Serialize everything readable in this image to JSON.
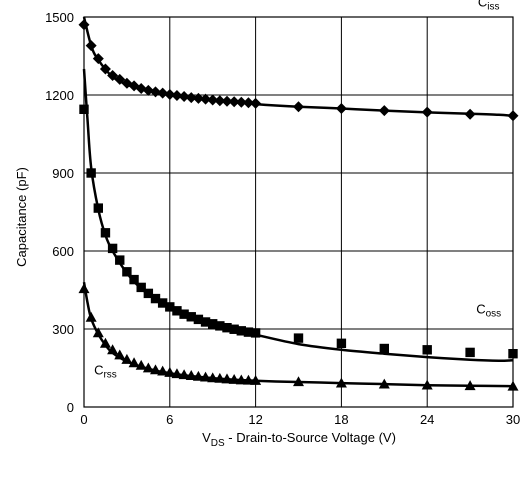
{
  "chart_data": {
    "type": "scatter",
    "title": "",
    "xlabel": {
      "main": "V",
      "sub": "DS",
      "rest": " - Drain-to-Source Voltage (V)"
    },
    "ylabel": "Capacitance (pF)",
    "xlim": [
      0,
      30
    ],
    "ylim": [
      0,
      1500
    ],
    "grid": true,
    "x_ticks": [
      0,
      6,
      12,
      18,
      24,
      30
    ],
    "y_ticks": [
      0,
      300,
      600,
      900,
      1200,
      1500
    ],
    "x_tick_labels": [
      "0",
      "6",
      "12",
      "18",
      "24",
      "30"
    ],
    "y_tick_labels": [
      "0",
      "300",
      "600",
      "900",
      "1200",
      "1500"
    ],
    "series": [
      {
        "name": {
          "main": "C",
          "sub": "iss"
        },
        "marker": "diamond",
        "label_at": [
          28.3,
          1540
        ],
        "x": [
          0,
          0.5,
          1,
          1.5,
          2,
          2.5,
          3,
          3.5,
          4,
          4.5,
          5,
          5.5,
          6,
          6.5,
          7,
          7.5,
          8,
          8.5,
          9,
          9.5,
          10,
          10.5,
          11,
          11.5,
          12,
          15,
          18,
          21,
          24,
          27,
          30
        ],
        "y": [
          1470,
          1390,
          1340,
          1300,
          1275,
          1260,
          1245,
          1235,
          1225,
          1218,
          1212,
          1207,
          1202,
          1198,
          1194,
          1190,
          1187,
          1184,
          1181,
          1178,
          1176,
          1174,
          1172,
          1170,
          1168,
          1155,
          1148,
          1140,
          1134,
          1126,
          1120
        ],
        "curve_x": [
          0,
          0.5,
          1,
          2,
          3,
          4,
          5,
          6,
          8,
          10,
          12,
          15,
          18,
          21,
          24,
          27,
          29,
          30
        ],
        "curve_y": [
          1500,
          1390,
          1335,
          1270,
          1240,
          1222,
          1210,
          1200,
          1186,
          1175,
          1165,
          1155,
          1148,
          1140,
          1133,
          1128,
          1124,
          1120
        ]
      },
      {
        "name": {
          "main": "C",
          "sub": "oss"
        },
        "marker": "square",
        "label_at": [
          28.3,
          360
        ],
        "x": [
          0,
          0.5,
          1,
          1.5,
          2,
          2.5,
          3,
          3.5,
          4,
          4.5,
          5,
          5.5,
          6,
          6.5,
          7,
          7.5,
          8,
          8.5,
          9,
          9.5,
          10,
          10.5,
          11,
          11.5,
          12,
          15,
          18,
          21,
          24,
          27,
          30
        ],
        "y": [
          1145,
          900,
          765,
          670,
          610,
          565,
          520,
          490,
          460,
          437,
          417,
          400,
          385,
          370,
          357,
          347,
          337,
          327,
          320,
          312,
          305,
          299,
          293,
          288,
          285,
          265,
          245,
          225,
          220,
          210,
          205
        ],
        "curve_x": [
          0,
          0.25,
          0.5,
          1,
          1.5,
          2,
          3,
          4,
          5,
          6,
          7,
          8,
          9,
          10,
          11,
          12,
          15,
          18,
          21,
          24,
          27,
          29,
          30
        ],
        "curve_y": [
          1300,
          1100,
          920,
          760,
          660,
          600,
          515,
          455,
          415,
          380,
          353,
          333,
          317,
          302,
          290,
          278,
          242,
          220,
          205,
          192,
          182,
          178,
          180
        ]
      },
      {
        "name": {
          "main": "C",
          "sub": "rss"
        },
        "marker": "triangle",
        "label_at": [
          1.5,
          125
        ],
        "x": [
          0,
          0.5,
          1,
          1.5,
          2,
          2.5,
          3,
          3.5,
          4,
          4.5,
          5,
          5.5,
          6,
          6.5,
          7,
          7.5,
          8,
          8.5,
          9,
          9.5,
          10,
          10.5,
          11,
          11.5,
          12,
          15,
          18,
          21,
          24,
          27,
          30
        ],
        "y": [
          455,
          345,
          285,
          245,
          220,
          200,
          183,
          170,
          160,
          150,
          143,
          138,
          133,
          128,
          124,
          121,
          118,
          115,
          112,
          110,
          108,
          106,
          104,
          103,
          102,
          97,
          92,
          88,
          84,
          82,
          80
        ],
        "curve_x": [
          0,
          0.25,
          0.5,
          1,
          1.5,
          2,
          3,
          4,
          5,
          6,
          7,
          8,
          9,
          10,
          12,
          15,
          18,
          21,
          24,
          27,
          30
        ],
        "curve_y": [
          480,
          400,
          340,
          280,
          238,
          208,
          175,
          155,
          140,
          130,
          122,
          116,
          111,
          107,
          101,
          96,
          92,
          88,
          84,
          82,
          80
        ]
      }
    ]
  }
}
